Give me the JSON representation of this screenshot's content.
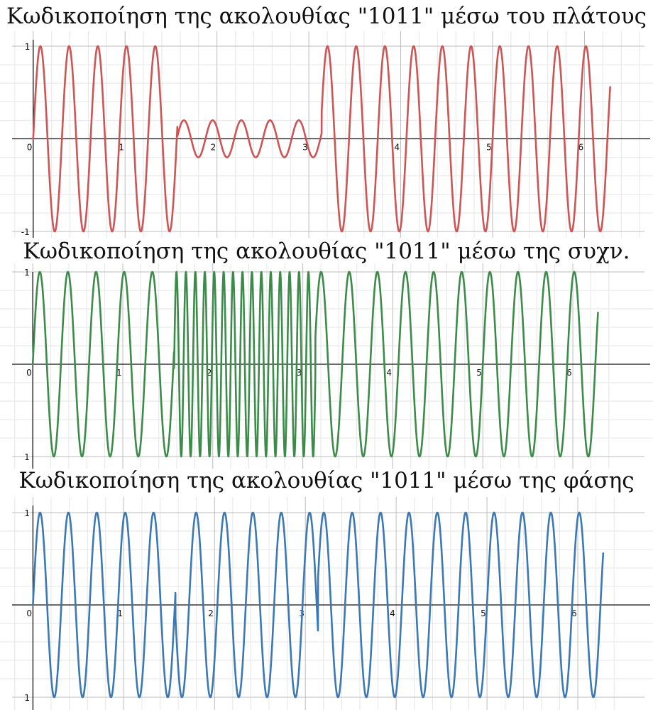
{
  "chart_data": [
    {
      "type": "line",
      "title": "Κωδικοποίηση της ακολουθίας \"1011\" μέσω του πλάτους",
      "modulation": "amplitude",
      "bit_sequence": "1011",
      "xlim": [
        -0.23,
        6.63
      ],
      "ylim": [
        -1,
        1
      ],
      "x_ticks": [
        "0",
        "1",
        "2",
        "3",
        "4",
        "5",
        "6"
      ],
      "y_ticks": [
        "1",
        "-1"
      ],
      "grid": true,
      "series": [
        {
          "color": "#cd5555",
          "x_range": [
            0,
            6.28
          ],
          "segments": [
            {
              "x_start": 0,
              "x_end": 1.57,
              "amplitude": 1,
              "cycles_per_unit": 3.2,
              "phase_shift": 0
            },
            {
              "x_start": 1.57,
              "x_end": 3.14,
              "amplitude": 0.2,
              "cycles_per_unit": 3.2,
              "phase_shift": 0
            },
            {
              "x_start": 3.14,
              "x_end": 6.28,
              "amplitude": 1,
              "cycles_per_unit": 3.2,
              "phase_shift": 0
            }
          ]
        }
      ]
    },
    {
      "type": "line",
      "title": "Κωδικοποίηση της ακολουθίας \"1011\" μέσω της συχν.",
      "modulation": "frequency",
      "bit_sequence": "1011",
      "xlim": [
        -0.23,
        6.52
      ],
      "ylim": [
        -1,
        1
      ],
      "x_ticks": [
        "0",
        "1",
        "2",
        "3",
        "4",
        "5",
        "6"
      ],
      "y_ticks": [
        "1",
        "1"
      ],
      "grid": true,
      "series": [
        {
          "color": "#3d8b4a",
          "x_range": [
            0,
            6.28
          ],
          "segments": [
            {
              "x_start": 0,
              "x_end": 1.57,
              "amplitude": 1,
              "cycles_per_unit": 3.2,
              "phase_shift": 0
            },
            {
              "x_start": 1.57,
              "x_end": 3.14,
              "amplitude": 1,
              "cycles_per_unit": 9.55,
              "phase_shift": 0
            },
            {
              "x_start": 3.14,
              "x_end": 6.28,
              "amplitude": 1,
              "cycles_per_unit": 3.2,
              "phase_shift": 0
            }
          ]
        }
      ]
    },
    {
      "type": "line",
      "title": "Κωδικοποίηση της ακολουθίας \"1011\" μέσω της φάσης",
      "modulation": "phase",
      "bit_sequence": "1011",
      "xlim": [
        -0.23,
        6.5
      ],
      "ylim": [
        -1,
        1
      ],
      "x_ticks": [
        "0",
        "1",
        "2",
        "3",
        "4",
        "5",
        "6"
      ],
      "y_ticks": [
        "1",
        "1"
      ],
      "grid": true,
      "series": [
        {
          "color": "#3b78b4",
          "x_range": [
            0,
            6.28
          ],
          "segments": [
            {
              "x_start": 0,
              "x_end": 1.57,
              "amplitude": 1,
              "cycles_per_unit": 3.2,
              "phase_shift": 0
            },
            {
              "x_start": 1.57,
              "x_end": 3.14,
              "amplitude": 1,
              "cycles_per_unit": 3.2,
              "phase_shift": 180
            },
            {
              "x_start": 3.14,
              "x_end": 6.28,
              "amplitude": 1,
              "cycles_per_unit": 3.2,
              "phase_shift": 0
            }
          ]
        }
      ]
    }
  ]
}
